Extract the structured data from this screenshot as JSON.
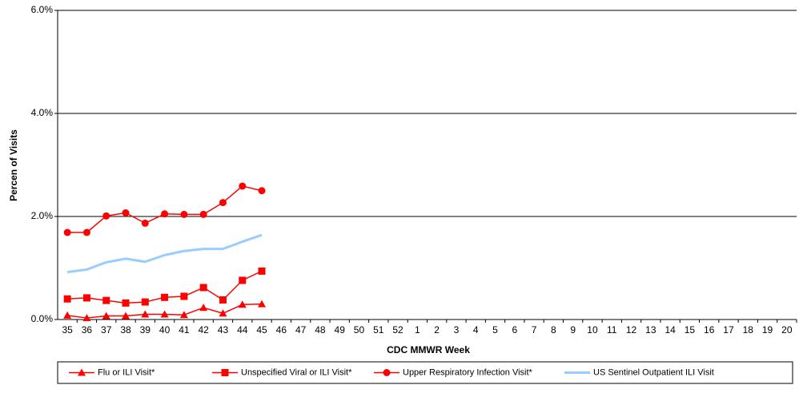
{
  "chart_data": {
    "type": "line",
    "x_label": "CDC MMWR Week",
    "y_label": "Percen of Visits",
    "categories": [
      "35",
      "36",
      "37",
      "38",
      "39",
      "40",
      "41",
      "42",
      "43",
      "44",
      "45",
      "46",
      "47",
      "48",
      "49",
      "50",
      "51",
      "52",
      "1",
      "2",
      "3",
      "4",
      "5",
      "6",
      "7",
      "8",
      "9",
      "10",
      "11",
      "12",
      "13",
      "14",
      "15",
      "16",
      "17",
      "18",
      "19",
      "20"
    ],
    "ylim": [
      0,
      6
    ],
    "yticks": [
      {
        "value": 0,
        "label": "0.0%"
      },
      {
        "value": 2,
        "label": "2.0%"
      },
      {
        "value": 4,
        "label": "4.0%"
      },
      {
        "value": 6,
        "label": "6.0%"
      }
    ],
    "grid": true,
    "legend": "bottom",
    "series": [
      {
        "name": "Flu or ILI Visit*",
        "color": "#ff0000",
        "marker": "triangle",
        "values": [
          0.08,
          0.03,
          0.07,
          0.07,
          0.1,
          0.1,
          0.09,
          0.23,
          0.12,
          0.29,
          0.3,
          null,
          null,
          null,
          null,
          null,
          null,
          null,
          null,
          null,
          null,
          null,
          null,
          null,
          null,
          null,
          null,
          null,
          null,
          null,
          null,
          null,
          null,
          null,
          null,
          null,
          null,
          null
        ]
      },
      {
        "name": "Unspecified Viral or ILI Visit*",
        "color": "#ff0000",
        "marker": "square",
        "values": [
          0.4,
          0.42,
          0.37,
          0.32,
          0.34,
          0.43,
          0.45,
          0.62,
          0.38,
          0.76,
          0.94,
          null,
          null,
          null,
          null,
          null,
          null,
          null,
          null,
          null,
          null,
          null,
          null,
          null,
          null,
          null,
          null,
          null,
          null,
          null,
          null,
          null,
          null,
          null,
          null,
          null,
          null,
          null
        ]
      },
      {
        "name": "Upper Respiratory Infection Visit*",
        "color": "#ff0000",
        "marker": "circle",
        "values": [
          1.69,
          1.69,
          2.01,
          2.07,
          1.87,
          2.05,
          2.04,
          2.04,
          2.27,
          2.59,
          2.5,
          null,
          null,
          null,
          null,
          null,
          null,
          null,
          null,
          null,
          null,
          null,
          null,
          null,
          null,
          null,
          null,
          null,
          null,
          null,
          null,
          null,
          null,
          null,
          null,
          null,
          null,
          null
        ]
      },
      {
        "name": "US Sentinel Outpatient ILI Visit",
        "color": "#99ccff",
        "marker": "none",
        "values": [
          0.92,
          0.97,
          1.11,
          1.18,
          1.12,
          1.25,
          1.33,
          1.37,
          1.37,
          1.51,
          1.64,
          null,
          null,
          null,
          null,
          null,
          null,
          null,
          null,
          null,
          null,
          null,
          null,
          null,
          null,
          null,
          null,
          null,
          null,
          null,
          null,
          null,
          null,
          null,
          null,
          null,
          null,
          null
        ]
      }
    ]
  }
}
